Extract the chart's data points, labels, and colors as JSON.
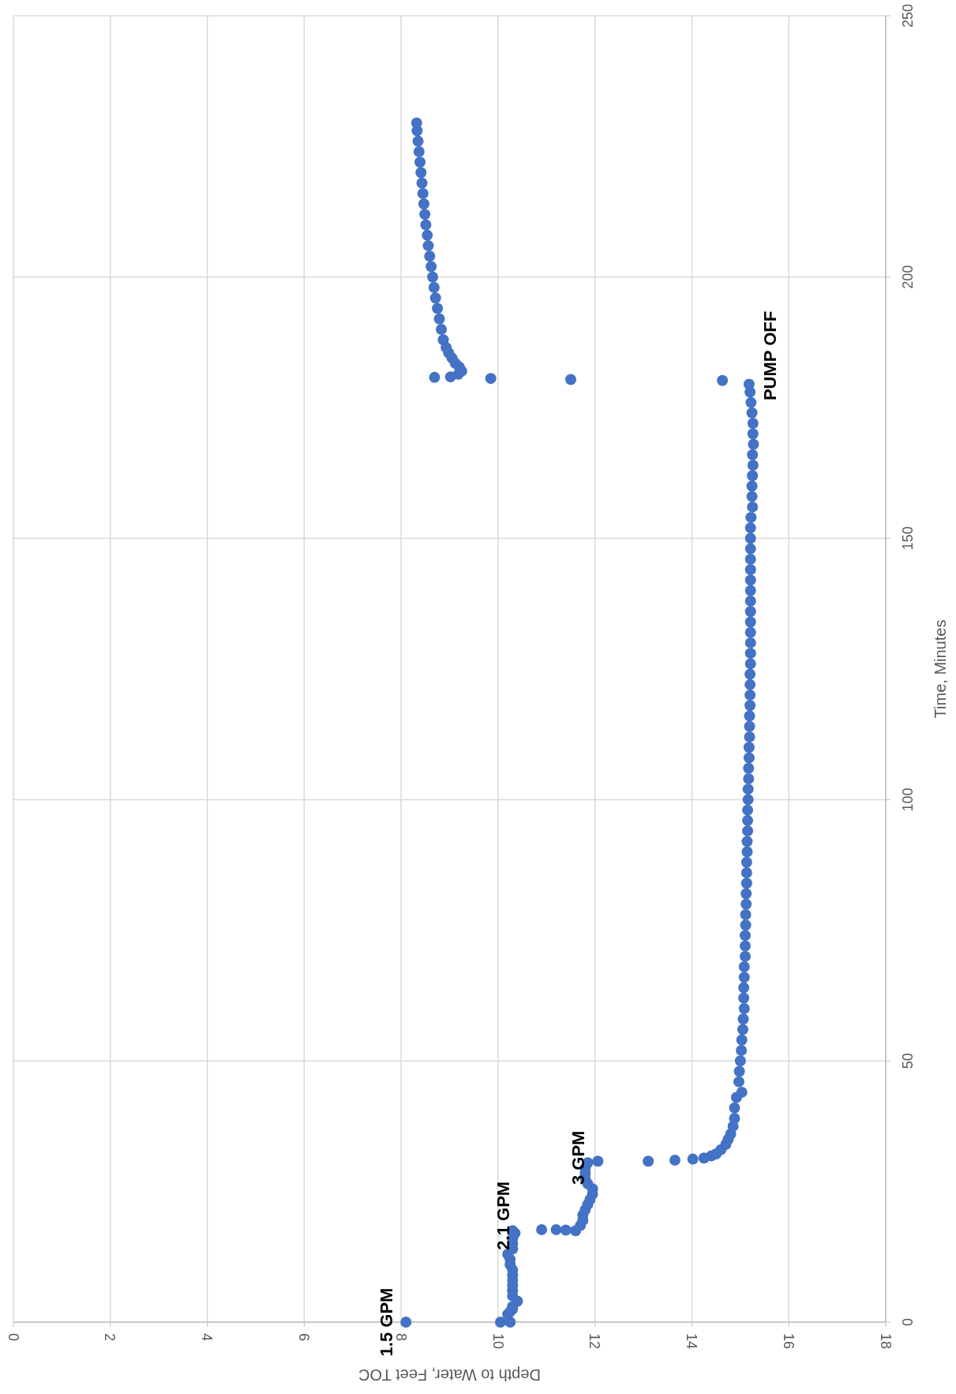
{
  "chart_data": {
    "type": "scatter",
    "xlabel": "Depth to Water, Feet TOC",
    "ylabel": "Time, Minutes",
    "xlim": [
      0,
      18
    ],
    "xticks": [
      0,
      2,
      4,
      6,
      8,
      10,
      12,
      14,
      16,
      18
    ],
    "ylim": [
      0,
      250
    ],
    "yticks": [
      0,
      50,
      100,
      150,
      200,
      250
    ],
    "grid": true,
    "marker": "circle",
    "series": [
      {
        "color": "#4472c4",
        "values": [
          0,
          0,
          0,
          1.5,
          2,
          2.5,
          3,
          4,
          5,
          6,
          7,
          8,
          9,
          10,
          11,
          12,
          13,
          14,
          15,
          16,
          17,
          17.5,
          17.7,
          17.7,
          17.6,
          17.5,
          18.5,
          19.5,
          20.5,
          21.5,
          22.5,
          23.5,
          24.5,
          25.5,
          26.5,
          27.5,
          28.5,
          29.5,
          30.5,
          30.8,
          30.8,
          31,
          31.2,
          31.4,
          31.8,
          32.2,
          33,
          34,
          35,
          36,
          37.5,
          39,
          41,
          43,
          44,
          46,
          48,
          50,
          52,
          54,
          56,
          58,
          60,
          62,
          64,
          66,
          68,
          70,
          72,
          74,
          76,
          78,
          80,
          82,
          84,
          86,
          88,
          90,
          92,
          94,
          96,
          98,
          100,
          102,
          104,
          106,
          108,
          110,
          112,
          114,
          116,
          118,
          120,
          122,
          124,
          126,
          128,
          130,
          132,
          134,
          136,
          138,
          140,
          142,
          144,
          146,
          148,
          150,
          152,
          154,
          156,
          158,
          160,
          162,
          164,
          166,
          168,
          170,
          172,
          174,
          176,
          178,
          179.5,
          180.2,
          180.4,
          180.6,
          180.9,
          180.8,
          181.4,
          182,
          182.8,
          183.5,
          184.5,
          185.5,
          186.5,
          188,
          190,
          192,
          194,
          196,
          198,
          200,
          202,
          204,
          206,
          208,
          210,
          212,
          214,
          216,
          218,
          220,
          222,
          224,
          226,
          228,
          229.5
        ],
        "x": [
          8.1,
          10.05,
          10.25,
          10.2,
          10.25,
          10.3,
          10.3,
          10.4,
          10.3,
          10.3,
          10.3,
          10.3,
          10.3,
          10.3,
          10.25,
          10.25,
          10.2,
          10.3,
          10.3,
          10.3,
          10.35,
          10.3,
          10.9,
          11.2,
          11.4,
          11.6,
          11.7,
          11.75,
          11.75,
          11.8,
          11.85,
          11.9,
          11.95,
          11.95,
          11.85,
          11.8,
          11.8,
          11.8,
          11.85,
          12.06,
          13.1,
          13.65,
          14.02,
          14.25,
          14.4,
          14.5,
          14.6,
          14.7,
          14.75,
          14.8,
          14.85,
          14.88,
          14.88,
          14.92,
          15.03,
          14.97,
          14.98,
          15.0,
          15.02,
          15.03,
          15.05,
          15.06,
          15.08,
          15.07,
          15.07,
          15.08,
          15.08,
          15.1,
          15.1,
          15.1,
          15.11,
          15.11,
          15.12,
          15.12,
          15.13,
          15.13,
          15.13,
          15.14,
          15.14,
          15.15,
          15.15,
          15.15,
          15.16,
          15.16,
          15.17,
          15.17,
          15.18,
          15.18,
          15.19,
          15.19,
          15.19,
          15.2,
          15.2,
          15.2,
          15.2,
          15.21,
          15.21,
          15.21,
          15.21,
          15.21,
          15.21,
          15.21,
          15.21,
          15.21,
          15.21,
          15.21,
          15.21,
          15.21,
          15.21,
          15.22,
          15.25,
          15.24,
          15.24,
          15.25,
          15.26,
          15.25,
          15.27,
          15.26,
          15.26,
          15.24,
          15.22,
          15.2,
          15.18,
          14.63,
          11.5,
          9.85,
          9.02,
          8.69,
          9.18,
          9.25,
          9.2,
          9.12,
          9.05,
          8.98,
          8.93,
          8.87,
          8.83,
          8.79,
          8.75,
          8.71,
          8.68,
          8.65,
          8.62,
          8.59,
          8.56,
          8.54,
          8.51,
          8.49,
          8.47,
          8.45,
          8.43,
          8.41,
          8.39,
          8.37,
          8.35,
          8.33,
          8.32
        ]
      }
    ],
    "annotations": [
      {
        "text": "1.5 GPM",
        "x": 8.1,
        "y": 0
      },
      {
        "text": "2.1 GPM",
        "x": 10.3,
        "y": 17.5
      },
      {
        "text": "3 GPM",
        "x": 11.8,
        "y": 29.5
      },
      {
        "text": "PUMP OFF",
        "x": 15.18,
        "y": 179.5
      }
    ]
  }
}
